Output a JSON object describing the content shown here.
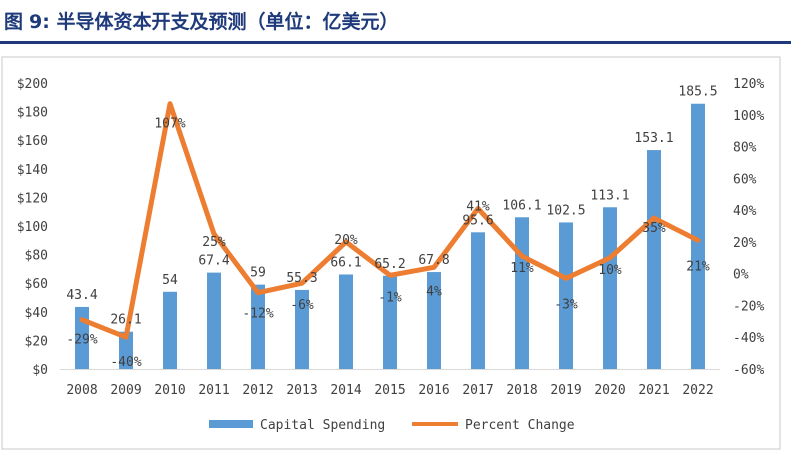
{
  "figure": {
    "label": "图",
    "number": "9:",
    "title": "半导体资本开支及预测（单位：亿美元）"
  },
  "chart_data": {
    "type": "bar+line",
    "categories": [
      "2008",
      "2009",
      "2010",
      "2011",
      "2012",
      "2013",
      "2014",
      "2015",
      "2016",
      "2017",
      "2018",
      "2019",
      "2020",
      "2021",
      "2022"
    ],
    "series": [
      {
        "name": "Capital Spending",
        "type": "bar",
        "axis": "left",
        "values": [
          43.4,
          26.1,
          54,
          67.4,
          59,
          55.3,
          66.1,
          65.2,
          67.8,
          95.6,
          106.1,
          102.5,
          113.1,
          153.1,
          185.5
        ],
        "labels": [
          "43.4",
          "26.1",
          "54",
          "67.4",
          "59",
          "55.3",
          "66.1",
          "65.2",
          "67.8",
          "95.6",
          "106.1",
          "102.5",
          "113.1",
          "153.1",
          "185.5"
        ],
        "color": "#5b9bd5"
      },
      {
        "name": "Percent Change",
        "type": "line",
        "axis": "right",
        "values": [
          -29,
          -40,
          107,
          25,
          -12,
          -6,
          20,
          -1,
          4,
          41,
          11,
          -3,
          10,
          35,
          21
        ],
        "labels": [
          "-29%",
          "-40%",
          "107%",
          "25%",
          "-12%",
          "-6%",
          "20%",
          "-1%",
          "4%",
          "41%",
          "11%",
          "-3%",
          "10%",
          "35%",
          "21%"
        ],
        "color": "#ed7d31"
      }
    ],
    "y_left": {
      "min": 0,
      "max": 200,
      "ticks": [
        0,
        20,
        40,
        60,
        80,
        100,
        120,
        140,
        160,
        180,
        200
      ],
      "tick_labels": [
        "$0",
        "$20",
        "$40",
        "$60",
        "$80",
        "$100",
        "$120",
        "$140",
        "$160",
        "$180",
        "$200"
      ]
    },
    "y_right": {
      "min": -60,
      "max": 120,
      "ticks": [
        -60,
        -40,
        -20,
        0,
        20,
        40,
        60,
        80,
        100,
        120
      ],
      "tick_labels": [
        "-60%",
        "-40%",
        "-20%",
        "0%",
        "20%",
        "40%",
        "60%",
        "80%",
        "100%",
        "120%"
      ]
    },
    "legend": {
      "position": "bottom-center",
      "items": [
        "Capital Spending",
        "Percent Change"
      ]
    },
    "grid": false
  }
}
